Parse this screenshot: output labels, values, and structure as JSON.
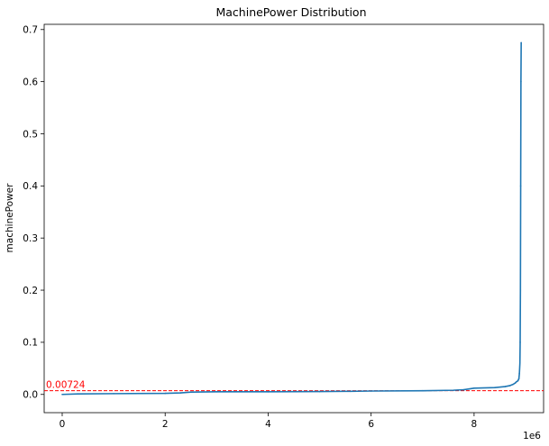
{
  "chart_data": {
    "type": "line",
    "title": "MachinePower Distribution",
    "xlabel": "",
    "ylabel": "machinePower",
    "x_offset_label": "1e6",
    "xlim": [
      -0.35,
      9.35
    ],
    "ylim": [
      -0.035,
      0.71
    ],
    "x_ticks": [
      0,
      2,
      4,
      6,
      8
    ],
    "x_tick_labels": [
      "0",
      "2",
      "4",
      "6",
      "8"
    ],
    "y_ticks": [
      0.0,
      0.1,
      0.2,
      0.3,
      0.4,
      0.5,
      0.6,
      0.7
    ],
    "y_tick_labels": [
      "0.0",
      "0.1",
      "0.2",
      "0.3",
      "0.4",
      "0.5",
      "0.6",
      "0.7"
    ],
    "grid": false,
    "series": [
      {
        "color": "#1f77b4",
        "x": [
          0.0,
          0.3,
          1.0,
          2.0,
          2.3,
          2.5,
          3.0,
          4.0,
          5.0,
          5.6,
          6.0,
          7.0,
          7.6,
          7.8,
          8.0,
          8.4,
          8.6,
          8.7,
          8.75,
          8.8,
          8.82,
          8.85,
          8.87,
          8.88,
          8.89,
          8.895,
          8.9,
          8.905,
          8.91,
          8.915
        ],
        "y": [
          0.0,
          0.001,
          0.0015,
          0.002,
          0.003,
          0.0045,
          0.005,
          0.005,
          0.0055,
          0.006,
          0.0065,
          0.007,
          0.008,
          0.009,
          0.012,
          0.013,
          0.015,
          0.017,
          0.019,
          0.022,
          0.024,
          0.026,
          0.03,
          0.04,
          0.06,
          0.1,
          0.2,
          0.4,
          0.6,
          0.675
        ]
      }
    ],
    "reference_line": {
      "y": 0.00724,
      "label": "0.00724",
      "color": "#ff0000",
      "style": "dashed"
    }
  }
}
